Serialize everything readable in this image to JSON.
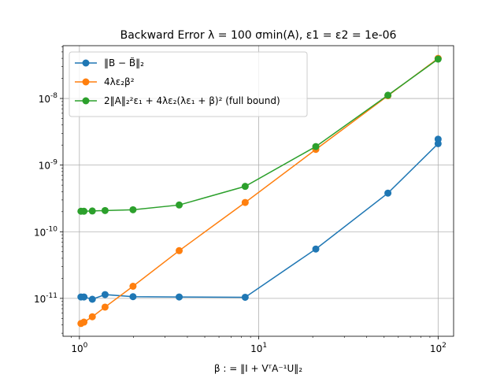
{
  "chart_data": {
    "type": "line",
    "title": "Backward Error λ = 100 σmin(A), ε1 = ε2 = 1e-06",
    "xlabel": "β : = ‖I + VᵀA⁻¹U‖₂",
    "ylabel": "",
    "xscale": "log",
    "yscale": "log",
    "xlim": [
      0.81,
      122
    ],
    "ylim": [
      2.7e-12,
      6.2e-08
    ],
    "grid": true,
    "legend_position": "upper-left",
    "x_tick_labels": [
      "10^0",
      "10^1",
      "10^2"
    ],
    "y_tick_labels": [
      "10^-11",
      "10^-10",
      "10^-9",
      "10^-8"
    ],
    "series": [
      {
        "name": "‖B − B̃‖₂",
        "color": "#1f77b4",
        "x": [
          1.02,
          1.06,
          1.18,
          1.39,
          1.99,
          3.6,
          8.4,
          20.8,
          52.5,
          100,
          100
        ],
        "y": [
          1.05e-11,
          1.05e-11,
          9.7e-12,
          1.14e-11,
          1.06e-11,
          1.05e-11,
          1.04e-11,
          5.5e-11,
          3.8e-10,
          2.1e-09,
          2.45e-09
        ]
      },
      {
        "name": "4λε₂β²",
        "color": "#ff7f0e",
        "x": [
          1.02,
          1.06,
          1.18,
          1.39,
          1.99,
          3.6,
          8.4,
          20.8,
          52.5,
          100
        ],
        "y": [
          4.2e-12,
          4.4e-12,
          5.3e-12,
          7.4e-12,
          1.52e-11,
          5.2e-11,
          2.75e-10,
          1.72e-09,
          1.1e-08,
          4e-08
        ]
      },
      {
        "name": "2‖A‖₂²ε₁ + 4λε₂(λε₁ + β)² (full bound)",
        "color": "#2ca02c",
        "x": [
          1.02,
          1.06,
          1.18,
          1.39,
          1.99,
          3.6,
          8.4,
          20.8,
          52.5,
          100
        ],
        "y": [
          2.03e-10,
          2.03e-10,
          2.05e-10,
          2.08e-10,
          2.14e-10,
          2.52e-10,
          4.8e-10,
          1.9e-09,
          1.12e-08,
          3.9e-08
        ]
      }
    ]
  }
}
